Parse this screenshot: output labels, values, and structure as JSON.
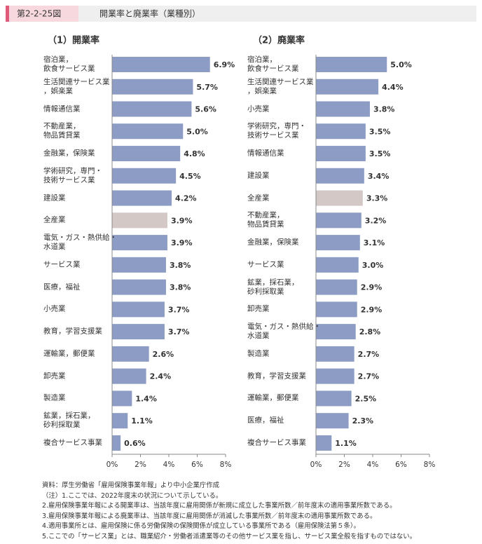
{
  "header": {
    "label": "第2-2-25図",
    "title": "開業率と廃業率（業種別）"
  },
  "chart_data": [
    {
      "type": "barh",
      "title": "（1）開業率",
      "categories": [
        "宿泊業，\n飲食サービス業",
        "生活関連サービス業\n，娯楽業",
        "情報通信業",
        "不動産業，\n物品賃貸業",
        "金融業，保険業",
        "学術研究，専門・\n技術サービス業",
        "建設業",
        "全産業",
        "電気・ガス・熱供給・\n水道業",
        "サービス業",
        "医療，福祉",
        "小売業",
        "教育，学習支援業",
        "運輸業，郵便業",
        "卸売業",
        "製造業",
        "鉱業，採石業，\n砂利採取業",
        "複合サービス事業"
      ],
      "values": [
        6.9,
        5.7,
        5.6,
        5.0,
        4.8,
        4.5,
        4.2,
        3.9,
        3.9,
        3.8,
        3.8,
        3.7,
        3.7,
        2.6,
        2.4,
        1.4,
        1.1,
        0.6
      ],
      "value_labels": [
        "6.9%",
        "5.7%",
        "5.6%",
        "5.0%",
        "4.8%",
        "4.5%",
        "4.2%",
        "3.9%",
        "3.9%",
        "3.8%",
        "3.8%",
        "3.7%",
        "3.7%",
        "2.6%",
        "2.4%",
        "1.4%",
        "1.1%",
        "0.6%"
      ],
      "colors": [
        "#8c9cc4",
        "#8c9cc4",
        "#8c9cc4",
        "#8c9cc4",
        "#8c9cc4",
        "#8c9cc4",
        "#8c9cc4",
        "#d4c8c6",
        "#8c9cc4",
        "#8c9cc4",
        "#8c9cc4",
        "#8c9cc4",
        "#8c9cc4",
        "#8c9cc4",
        "#8c9cc4",
        "#8c9cc4",
        "#8c9cc4",
        "#8c9cc4"
      ],
      "xlim": [
        0,
        8
      ],
      "xticks": [
        {
          "value": 0,
          "label": "0%"
        },
        {
          "value": 2,
          "label": "2%"
        },
        {
          "value": 4,
          "label": "4%"
        },
        {
          "value": 6,
          "label": "6%"
        },
        {
          "value": 8,
          "label": "8%"
        }
      ]
    },
    {
      "type": "barh",
      "title": "（2）廃業率",
      "categories": [
        "宿泊業，\n飲食サービス業",
        "生活関連サービス業\n，娯楽業",
        "小売業",
        "学術研究，専門・\n技術サービス業",
        "情報通信業",
        "建設業",
        "全産業",
        "不動産業，\n物品賃貸業",
        "金融業，保険業",
        "サービス業",
        "鉱業，採石業，\n砂利採取業",
        "卸売業",
        "電気・ガス・熱供給・\n水道業",
        "製造業",
        "教育，学習支援業",
        "運輸業，郵便業",
        "医療，福祉",
        "複合サービス事業"
      ],
      "values": [
        5.0,
        4.4,
        3.8,
        3.5,
        3.5,
        3.4,
        3.3,
        3.2,
        3.1,
        3.0,
        2.9,
        2.9,
        2.8,
        2.7,
        2.7,
        2.5,
        2.3,
        1.1
      ],
      "value_labels": [
        "5.0%",
        "4.4%",
        "3.8%",
        "3.5%",
        "3.5%",
        "3.4%",
        "3.3%",
        "3.2%",
        "3.1%",
        "3.0%",
        "2.9%",
        "2.9%",
        "2.8%",
        "2.7%",
        "2.7%",
        "2.5%",
        "2.3%",
        "1.1%"
      ],
      "colors": [
        "#8c9cc4",
        "#8c9cc4",
        "#8c9cc4",
        "#8c9cc4",
        "#8c9cc4",
        "#8c9cc4",
        "#d4c8c6",
        "#8c9cc4",
        "#8c9cc4",
        "#8c9cc4",
        "#8c9cc4",
        "#8c9cc4",
        "#8c9cc4",
        "#8c9cc4",
        "#8c9cc4",
        "#8c9cc4",
        "#8c9cc4",
        "#8c9cc4"
      ],
      "xlim": [
        0,
        8
      ],
      "xticks": [
        {
          "value": 0,
          "label": "0%"
        },
        {
          "value": 2,
          "label": "2%"
        },
        {
          "value": 4,
          "label": "4%"
        },
        {
          "value": 6,
          "label": "6%"
        },
        {
          "value": 8,
          "label": "8%"
        }
      ]
    }
  ],
  "notes": [
    "資料：厚生労働省「雇用保険事業年報」より中小企業庁作成",
    "（注）1.ここでは、2022年度末の状況について示している。",
    "2.雇用保険事業年報による開業率は、当該年度に雇用関係が新規に成立した事業所数／前年度末の適用事業所数である。",
    "3.雇用保険事業年報による廃業率は、当該年度に雇用関係が消滅した事業所数／前年度末の適用事業所数である。",
    "4.適用事業所とは、雇用保険に係る労働保険の保険関係が成立している事業所である（雇用保険法第５条）。",
    "5.ここでの「サービス業」とは、職業紹介・労働者派遣業等のその他サービス業を指し、サービス業全般を指すものではない。"
  ]
}
